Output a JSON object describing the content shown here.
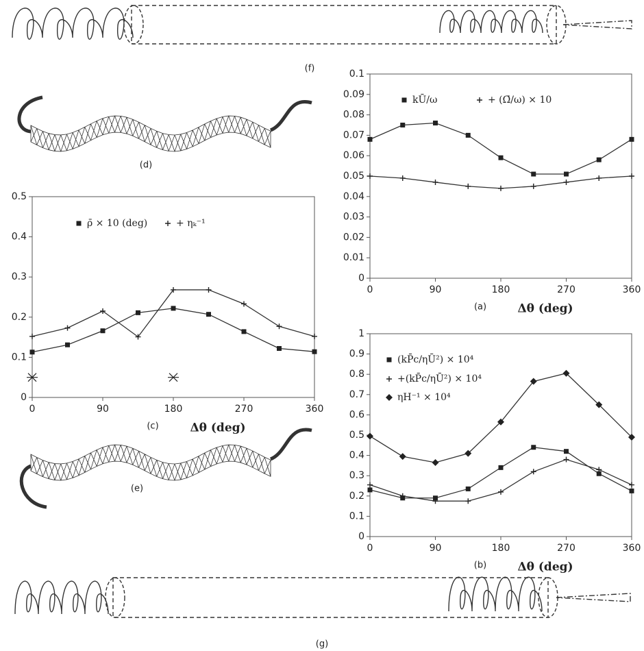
{
  "panels": {
    "f": "(f)",
    "d": "(d)",
    "e": "(e)",
    "g": "(g)"
  },
  "chart_data": [
    {
      "type": "line",
      "caption": "(a)",
      "x_label": "Δθ (deg)",
      "x": [
        0,
        45,
        90,
        135,
        180,
        225,
        270,
        315,
        360
      ],
      "series": [
        {
          "name": "kŪ/ω",
          "color": "#333333",
          "marker": "square",
          "values": [
            0.068,
            0.075,
            0.076,
            0.07,
            0.059,
            0.051,
            0.051,
            0.058,
            0.068
          ]
        },
        {
          "name": "+ (Ω̄/ω) × 10",
          "color": "#333333",
          "marker": "plus",
          "values": [
            0.05,
            0.049,
            0.047,
            0.045,
            0.044,
            0.045,
            0.047,
            0.049,
            0.05
          ]
        }
      ],
      "xlim": [
        0,
        360
      ],
      "xticks": [
        0,
        90,
        180,
        270,
        360
      ],
      "ylim": [
        0,
        0.1
      ],
      "yticks": [
        0,
        0.01,
        0.02,
        0.03,
        0.04,
        0.05,
        0.06,
        0.07,
        0.08,
        0.09,
        0.1
      ]
    },
    {
      "type": "line",
      "caption": "(c)",
      "x_label": "Δθ (deg)",
      "x": [
        0,
        45,
        90,
        135,
        180,
        225,
        270,
        315,
        360
      ],
      "series": [
        {
          "name": "ρ̄ × 10 (deg)",
          "color": "#333333",
          "marker": "square",
          "values": [
            0.113,
            0.131,
            0.166,
            0.211,
            0.222,
            0.207,
            0.164,
            0.122,
            0.114
          ]
        },
        {
          "name": "+ ηₖ⁻¹",
          "color": "#333333",
          "marker": "plus",
          "values": [
            0.152,
            0.173,
            0.215,
            0.151,
            0.268,
            0.268,
            0.233,
            0.177,
            0.152
          ]
        }
      ],
      "points": {
        "marker": "asterisk",
        "x": [
          0,
          180
        ],
        "values": [
          0.05,
          0.05
        ]
      },
      "xlim": [
        0,
        360
      ],
      "xticks": [
        0,
        90,
        180,
        270,
        360
      ],
      "ylim": [
        0,
        0.5
      ],
      "yticks": [
        0,
        0.1,
        0.2,
        0.3,
        0.4,
        0.5
      ]
    },
    {
      "type": "line",
      "caption": "(b)",
      "x_label": "Δθ (deg)",
      "x": [
        0,
        45,
        90,
        135,
        180,
        225,
        270,
        315,
        360
      ],
      "series": [
        {
          "name": "(kP̄c/ηŪ²) × 10⁴",
          "color": "#333333",
          "marker": "square",
          "values": [
            0.23,
            0.19,
            0.19,
            0.235,
            0.34,
            0.44,
            0.42,
            0.31,
            0.225
          ]
        },
        {
          "name": "+(kP̄c/ηŪ²) × 10⁴",
          "color": "#333333",
          "marker": "plus",
          "values": [
            0.255,
            0.2,
            0.175,
            0.175,
            0.22,
            0.32,
            0.38,
            0.33,
            0.255
          ]
        },
        {
          "name": "ηH⁻¹ × 10⁴",
          "color": "#333333",
          "marker": "diamond",
          "values": [
            0.495,
            0.395,
            0.365,
            0.41,
            0.565,
            0.765,
            0.805,
            0.65,
            0.49
          ]
        }
      ],
      "xlim": [
        0,
        360
      ],
      "xticks": [
        0,
        90,
        180,
        270,
        360
      ],
      "ylim": [
        0,
        1
      ],
      "yticks": [
        0,
        0.1,
        0.2,
        0.3,
        0.4,
        0.5,
        0.6,
        0.7,
        0.8,
        0.9,
        1
      ]
    }
  ]
}
